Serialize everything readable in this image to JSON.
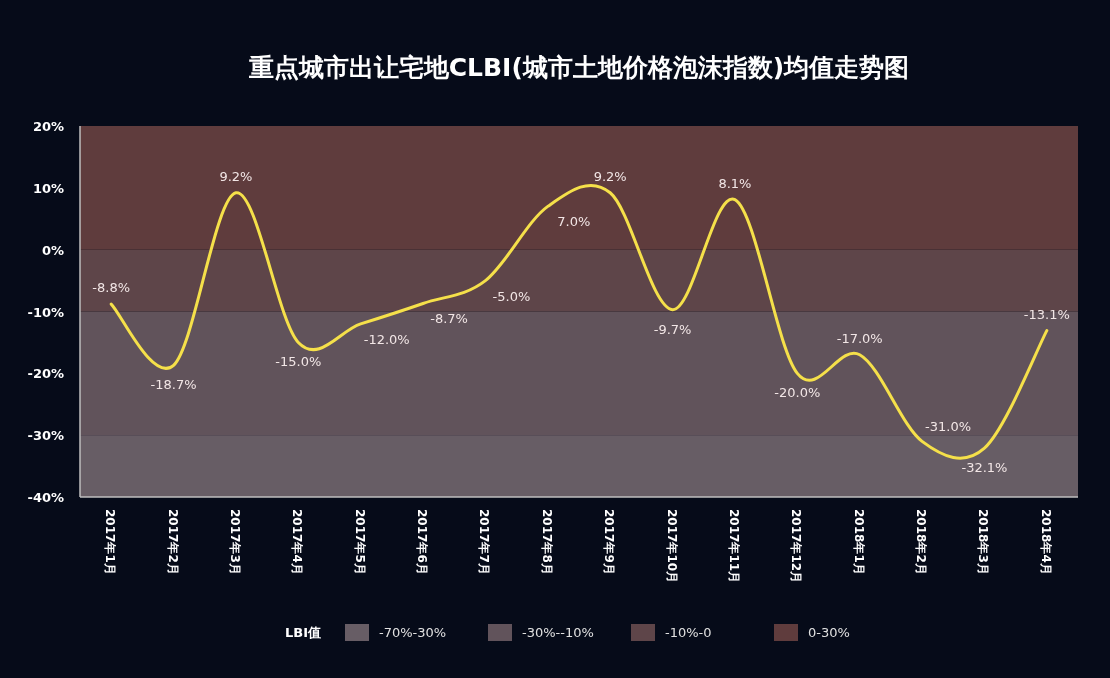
{
  "chart_data": {
    "type": "line",
    "title": "重点城市出让宅地CLBI(城市土地价格泡沫指数)均值走势图",
    "categories": [
      "2017年1月",
      "2017年2月",
      "2017年3月",
      "2017年4月",
      "2017年5月",
      "2017年6月",
      "2017年7月",
      "2017年8月",
      "2017年9月",
      "2017年10月",
      "2017年11月",
      "2017年12月",
      "2018年1月",
      "2018年2月",
      "2018年3月",
      "2018年4月"
    ],
    "series": [
      {
        "color": "#f5e04a",
        "values": [
          -8.8,
          -18.7,
          9.2,
          -15.0,
          -12.0,
          -8.7,
          -5.0,
          7.0,
          9.2,
          -9.7,
          8.1,
          -20.0,
          -17.0,
          -31.0,
          -32.1,
          -13.1
        ],
        "value_labels": [
          "-8.8%",
          "-18.7%",
          "9.2%",
          "-15.0%",
          "-12.0%",
          "-8.7%",
          "-5.0%",
          "7.0%",
          "9.2%",
          "-9.7%",
          "8.1%",
          "-20.0%",
          "-17.0%",
          "-31.0%",
          "-32.1%",
          "-13.1%"
        ]
      }
    ],
    "ylim": [
      -40,
      20
    ],
    "yticks": [
      {
        "value": -40,
        "label": "-40%"
      },
      {
        "value": -30,
        "label": "-30%"
      },
      {
        "value": -20,
        "label": "-20%"
      },
      {
        "value": -10,
        "label": "-10%"
      },
      {
        "value": 0,
        "label": "0%"
      },
      {
        "value": 10,
        "label": "10%"
      },
      {
        "value": 20,
        "label": "20%"
      }
    ],
    "bands": [
      {
        "axis": "y",
        "from": -40,
        "to": -30,
        "label": "-70%-30%",
        "color": "#675d65"
      },
      {
        "axis": "y",
        "from": -30,
        "to": -10,
        "label": "-30%--10%",
        "color": "#61535b"
      },
      {
        "axis": "y",
        "from": -10,
        "to": 0,
        "label": "-10%-0",
        "color": "#5e4549"
      },
      {
        "axis": "y",
        "from": 0,
        "to": 20,
        "label": "0-30%",
        "color": "#5f3c3d"
      }
    ],
    "legend_title": "LBI值",
    "legend": "bottom",
    "grid": false,
    "marker": "none",
    "line_style": "solid"
  }
}
